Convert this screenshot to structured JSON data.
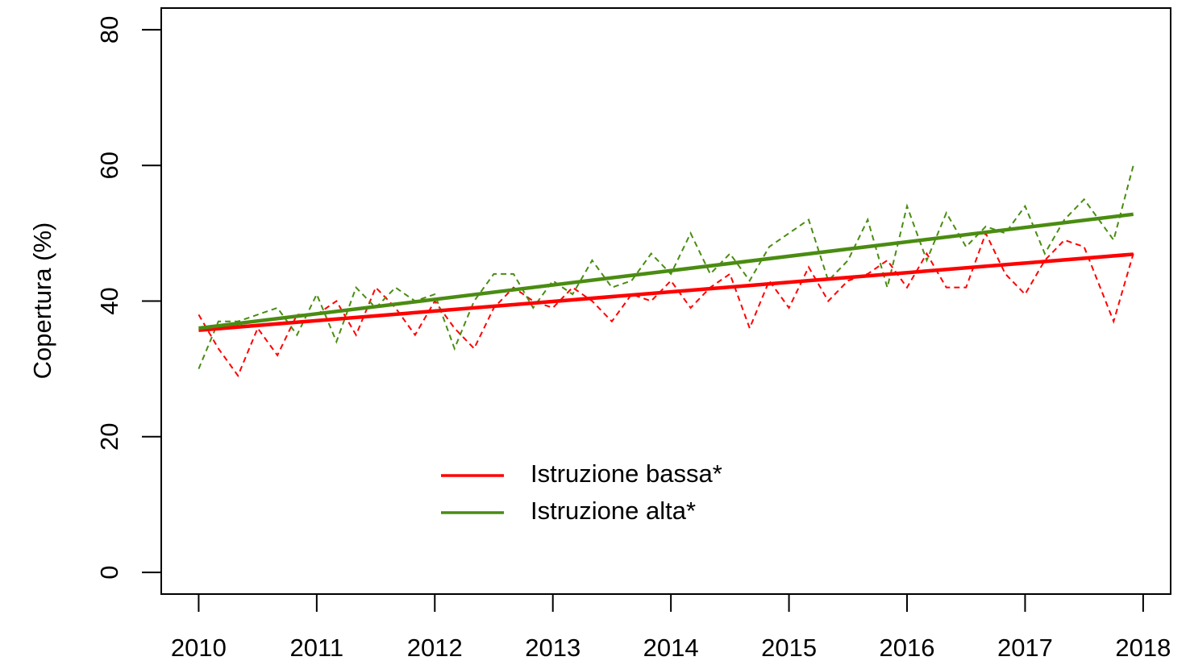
{
  "chart_data": {
    "type": "line",
    "y_label": "Copertura (%)",
    "xlim": [
      2009.683,
      2018.233
    ],
    "ylim": [
      -3.2,
      83.2
    ],
    "xticks": [
      2010,
      2011,
      2012,
      2013,
      2014,
      2015,
      2016,
      2017,
      2018
    ],
    "yticks": [
      0,
      20,
      40,
      60,
      80
    ],
    "legend": "bottom-center",
    "x": [
      2010,
      2010.167,
      2010.333,
      2010.5,
      2010.667,
      2010.833,
      2011,
      2011.167,
      2011.333,
      2011.5,
      2011.667,
      2011.833,
      2012,
      2012.167,
      2012.333,
      2012.5,
      2012.667,
      2012.833,
      2013,
      2013.167,
      2013.333,
      2013.5,
      2013.667,
      2013.833,
      2014,
      2014.167,
      2014.333,
      2014.5,
      2014.667,
      2014.833,
      2015,
      2015.167,
      2015.333,
      2015.5,
      2015.667,
      2015.833,
      2016,
      2016.167,
      2016.333,
      2016.5,
      2016.667,
      2016.833,
      2017,
      2017.167,
      2017.333,
      2017.5,
      2017.75,
      2017.917
    ],
    "series": [
      {
        "name": "Istruzione bassa*",
        "color": "#ff0000",
        "values": [
          38,
          33,
          29,
          36,
          32,
          38,
          38,
          40,
          35,
          42,
          39,
          35,
          40,
          36,
          33,
          39,
          42,
          40,
          39,
          42,
          40,
          37,
          41,
          40,
          43,
          39,
          42,
          44,
          36,
          43,
          39,
          45,
          40,
          43,
          44,
          46,
          42,
          47,
          42,
          42,
          50,
          44,
          41,
          46,
          49,
          48,
          37,
          47
        ],
        "trend_x": [
          2010,
          2017.917
        ],
        "trend_values": [
          35.7,
          46.9
        ]
      },
      {
        "name": "Istruzione alta*",
        "color": "#4a8c12",
        "values": [
          30,
          37,
          37,
          38,
          39,
          35,
          41,
          34,
          42,
          39,
          42,
          40,
          41,
          33,
          40,
          44,
          44,
          39,
          43,
          41,
          46,
          42,
          43,
          47,
          44,
          50,
          44,
          47,
          43,
          48,
          50,
          52,
          43,
          46,
          52,
          42,
          54,
          46,
          53,
          48,
          51,
          50,
          54,
          47,
          52,
          55,
          49,
          60
        ],
        "trend_x": [
          2010,
          2017.917
        ],
        "trend_values": [
          36,
          52.8
        ]
      }
    ]
  }
}
